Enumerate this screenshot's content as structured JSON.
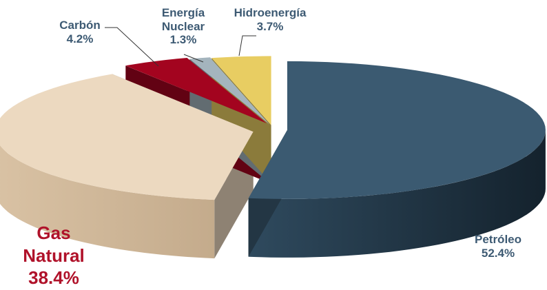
{
  "chart_data": {
    "type": "pie",
    "style": "3d-exploded",
    "slices": [
      {
        "label": "Petróleo",
        "value": 52.4,
        "value_text": "52.4%",
        "color": "#3b5a71"
      },
      {
        "label": "Gas Natural",
        "value": 38.4,
        "value_text": "38.4%",
        "color": "#ecd9c0"
      },
      {
        "label": "Carbón",
        "value": 4.2,
        "value_text": "4.2%",
        "color": "#a3041f"
      },
      {
        "label": "Energía Nuclear",
        "value": 1.3,
        "value_text": "1.3%",
        "color": "#a4b4bd"
      },
      {
        "label": "Hidroenergía",
        "value": 3.7,
        "value_text": "3.7%",
        "color": "#e8cd62"
      }
    ]
  },
  "labels": {
    "petroleo": {
      "name": "Petróleo",
      "pct": "52.4%"
    },
    "gas": {
      "name1": "Gas",
      "name2": "Natural",
      "pct": "38.4%"
    },
    "carbon": {
      "name": "Carbón",
      "pct": "4.2%"
    },
    "nuclear": {
      "name1": "Energía",
      "name2": "Nuclear",
      "pct": "1.3%"
    },
    "hidro": {
      "name": "Hidroenergía",
      "pct": "3.7%"
    }
  }
}
